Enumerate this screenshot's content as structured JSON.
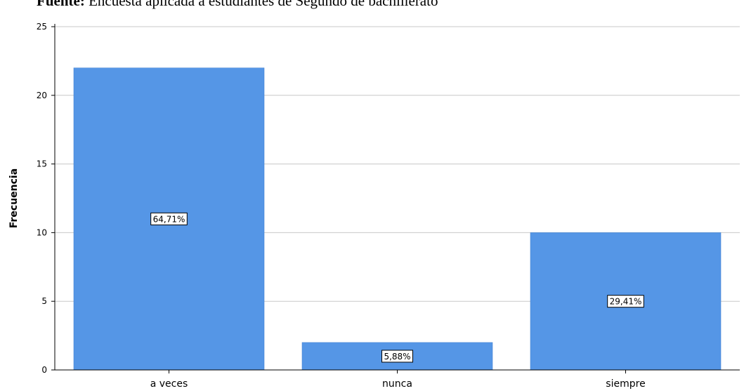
{
  "source_note": {
    "lead": "Fuente:",
    "text": "Encuesta aplicada a estudiantes de Segundo de bachillerato"
  },
  "chart_data": {
    "type": "bar",
    "categories": [
      "a veces",
      "nunca",
      "siempre"
    ],
    "values": [
      22,
      2,
      10
    ],
    "data_labels": [
      "64,71%",
      "5,88%",
      "29,41%"
    ],
    "ylabel": "Frecuencia",
    "ylim": [
      0,
      25
    ],
    "yticks": [
      0,
      5,
      10,
      15,
      20,
      25
    ],
    "grid": true,
    "bar_color": "#5596e6",
    "grid_color": "#c8c8c8"
  }
}
